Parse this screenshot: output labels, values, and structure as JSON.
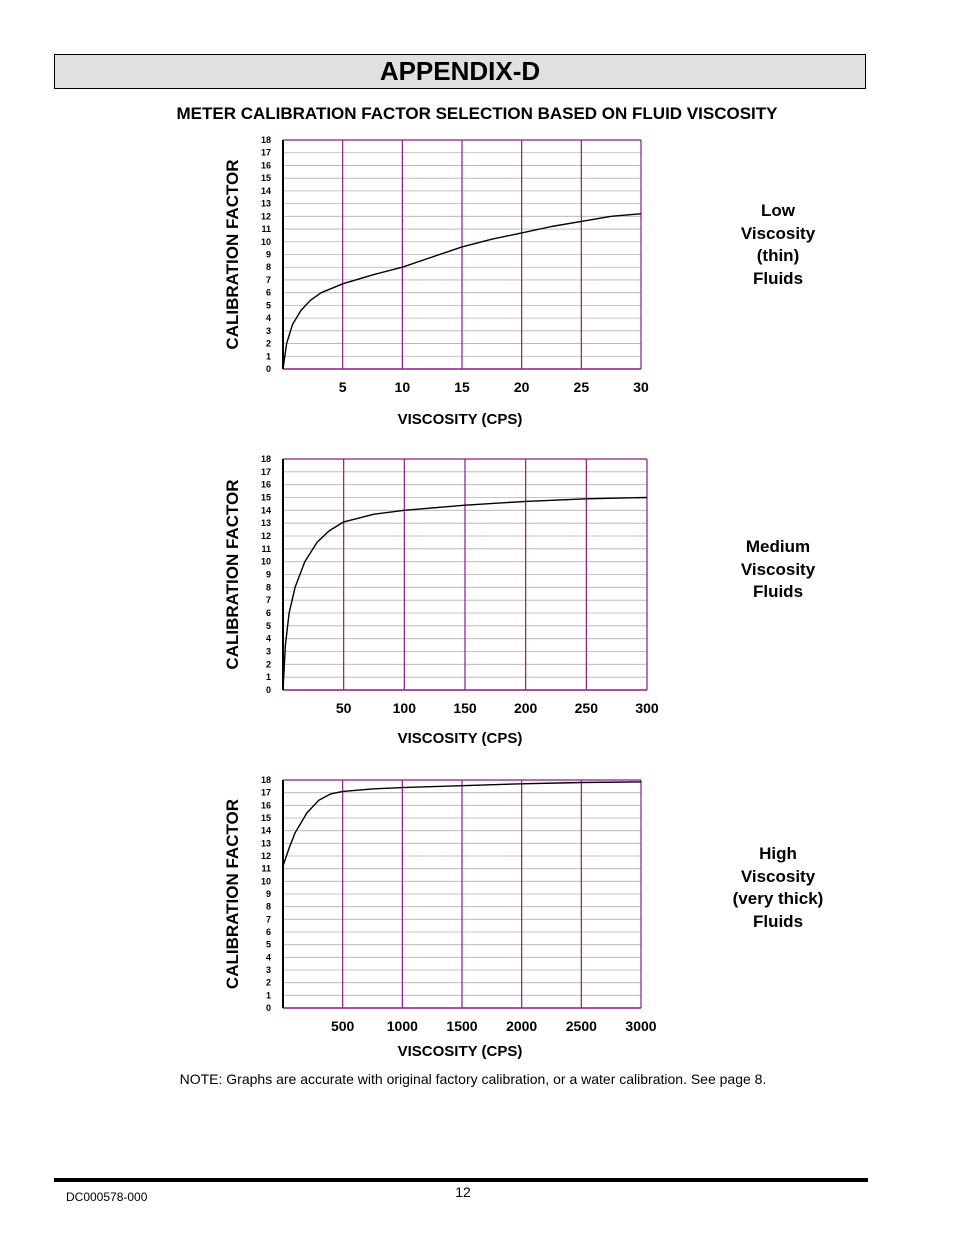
{
  "page": {
    "heading": "APPENDIX-D",
    "subtitle": "METER CALIBRATION FACTOR SELECTION BASED ON FLUID VISCOSITY",
    "note": "NOTE: Graphs are accurate with original factory calibration, or a water calibration.  See page 8.",
    "doc_number": "DC000578-000",
    "page_number": "12"
  },
  "colors": {
    "major_grid": "#8b1a8b",
    "minor_grid": "#b0b0b0",
    "curve": "#000000",
    "frame": "#000000",
    "banner_fill": "#e0e0e0"
  },
  "chart_data": [
    {
      "type": "line",
      "ylabel": "CALIBRATION FACTOR",
      "xlabel": "VISCOSITY  (CPS)",
      "side_label": [
        "Low",
        "Viscosity",
        "(thin)",
        "Fluids"
      ],
      "xlim": [
        0,
        30
      ],
      "ylim": [
        0,
        18
      ],
      "xticks": [
        5,
        10,
        15,
        20,
        25,
        30
      ],
      "xtick_labels": [
        "5",
        "10",
        "15",
        "20",
        "25",
        "30"
      ],
      "yticks": [
        0,
        1,
        2,
        3,
        4,
        5,
        6,
        7,
        8,
        9,
        10,
        11,
        12,
        13,
        14,
        15,
        16,
        17,
        18
      ],
      "grid": true,
      "series": [
        {
          "x": [
            0,
            0.3,
            0.8,
            1.5,
            2.3,
            3.2,
            4.5,
            5,
            7.5,
            10,
            12.5,
            15,
            17.5,
            20,
            22.5,
            25,
            27.5,
            30
          ],
          "y": [
            0,
            2.0,
            3.5,
            4.6,
            5.4,
            6.0,
            6.5,
            6.7,
            7.4,
            8.0,
            8.8,
            9.6,
            10.2,
            10.7,
            11.2,
            11.6,
            12.0,
            12.2
          ]
        }
      ]
    },
    {
      "type": "line",
      "ylabel": "CALIBRATION FACTOR",
      "xlabel": "VISCOSITY  (CPS)",
      "side_label": [
        "Medium",
        "Viscosity",
        "Fluids"
      ],
      "xlim": [
        0,
        300
      ],
      "ylim": [
        0,
        18
      ],
      "xticks": [
        50,
        100,
        150,
        200,
        250,
        300
      ],
      "xtick_labels": [
        "50",
        "100",
        "150",
        "200",
        "250",
        "300"
      ],
      "yticks": [
        0,
        1,
        2,
        3,
        4,
        5,
        6,
        7,
        8,
        9,
        10,
        11,
        12,
        13,
        14,
        15,
        16,
        17,
        18
      ],
      "grid": true,
      "series": [
        {
          "x": [
            0,
            2,
            5,
            10,
            18,
            28,
            38,
            50,
            75,
            100,
            150,
            200,
            250,
            300
          ],
          "y": [
            0,
            3.5,
            6.0,
            8.0,
            10.0,
            11.5,
            12.4,
            13.1,
            13.7,
            14.0,
            14.4,
            14.7,
            14.9,
            15.0
          ]
        }
      ]
    },
    {
      "type": "line",
      "ylabel": "CALIBRATION FACTOR",
      "xlabel": "VISCOSITY  (CPS)",
      "side_label": [
        "High",
        "Viscosity",
        "(very thick)",
        "Fluids"
      ],
      "xlim": [
        0,
        3000
      ],
      "ylim": [
        0,
        18
      ],
      "xticks": [
        500,
        1000,
        1500,
        2000,
        2500,
        3000
      ],
      "xtick_labels": [
        "500",
        "1000",
        "1500",
        "2000",
        "2500",
        "3000"
      ],
      "yticks": [
        0,
        1,
        2,
        3,
        4,
        5,
        6,
        7,
        8,
        9,
        10,
        11,
        12,
        13,
        14,
        15,
        16,
        17,
        18
      ],
      "grid": true,
      "series": [
        {
          "x": [
            0,
            50,
            100,
            200,
            300,
            400,
            500,
            750,
            1000,
            1500,
            2000,
            2500,
            3000
          ],
          "y": [
            11.2,
            12.6,
            13.8,
            15.4,
            16.4,
            16.9,
            17.1,
            17.3,
            17.4,
            17.55,
            17.7,
            17.8,
            17.85
          ]
        }
      ]
    }
  ]
}
